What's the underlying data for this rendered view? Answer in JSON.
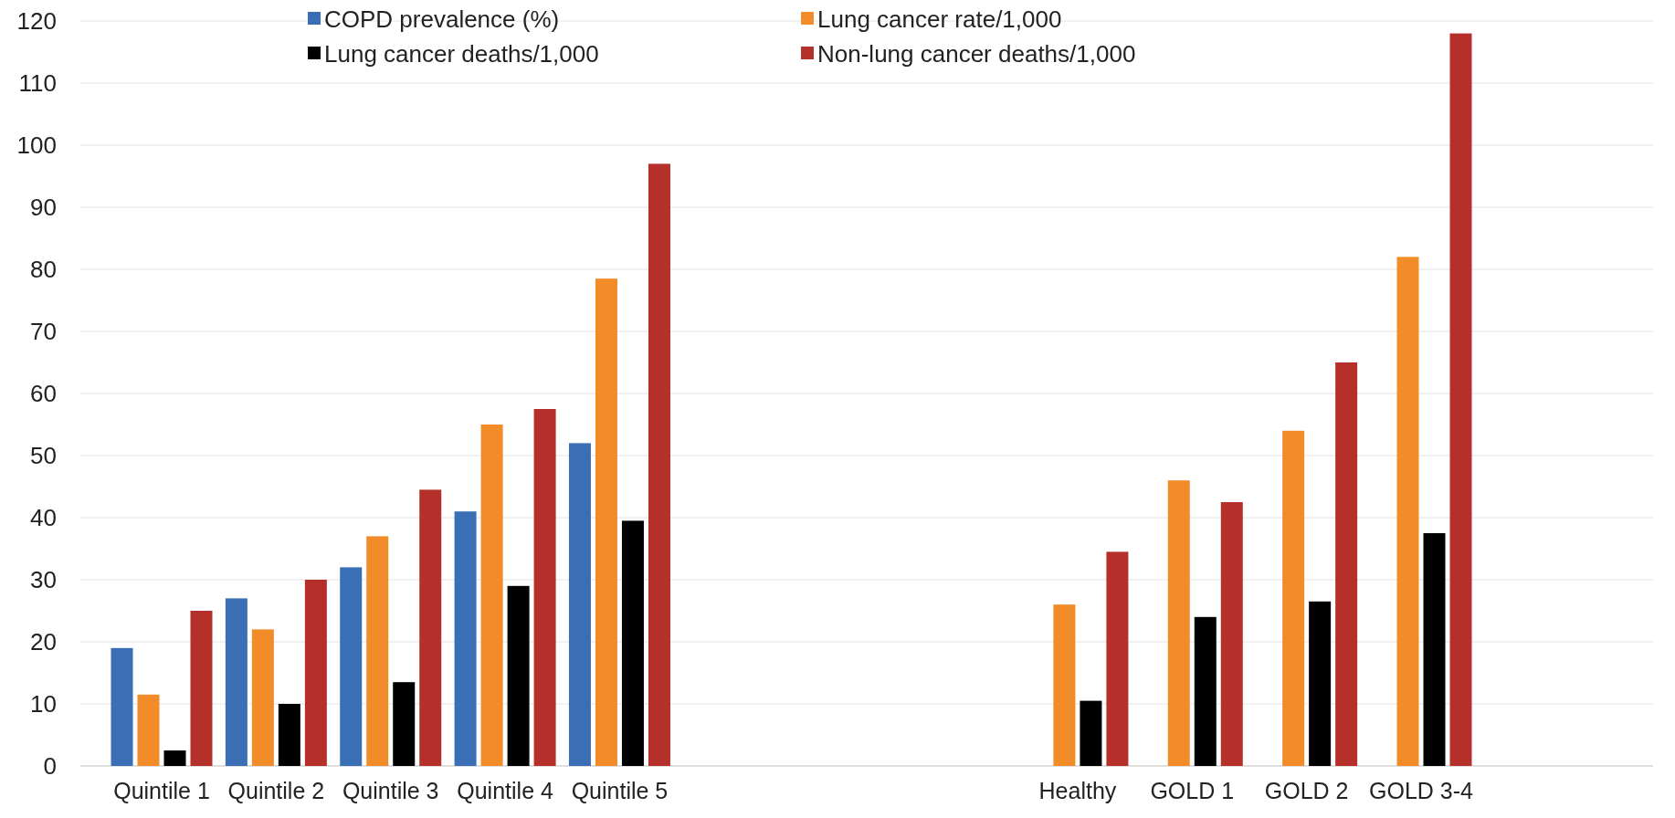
{
  "chart_data": {
    "type": "bar",
    "categories": [
      "Quintile 1",
      "Quintile 2",
      "Quintile 3",
      "Quintile 4",
      "Quintile 5",
      null,
      null,
      null,
      "Healthy",
      "GOLD 1",
      "GOLD 2",
      "GOLD 3-4"
    ],
    "series": [
      {
        "name": "COPD prevalence (%)",
        "color": "#3a6fb5",
        "values": [
          19,
          27,
          32,
          41,
          52,
          null,
          null,
          null,
          null,
          null,
          null,
          null
        ]
      },
      {
        "name": "Lung cancer rate/1,000",
        "color": "#f28c28",
        "values": [
          11.5,
          22,
          37,
          55,
          78.5,
          null,
          null,
          null,
          26,
          46,
          54,
          82
        ]
      },
      {
        "name": "Lung cancer deaths/1,000",
        "color": "#000000",
        "values": [
          2.5,
          10,
          13.5,
          29,
          39.5,
          null,
          null,
          null,
          10.5,
          24,
          26.5,
          37.5
        ]
      },
      {
        "name": "Non-lung cancer deaths/1,000",
        "color": "#b5302a",
        "values": [
          25,
          30,
          44.5,
          57.5,
          97,
          null,
          null,
          null,
          34.5,
          42.5,
          65,
          118
        ]
      }
    ],
    "ylim": [
      0,
      120
    ],
    "yticks": [
      0,
      10,
      20,
      30,
      40,
      50,
      60,
      70,
      80,
      90,
      100,
      110,
      120
    ],
    "grid": "y",
    "legend": "top"
  }
}
